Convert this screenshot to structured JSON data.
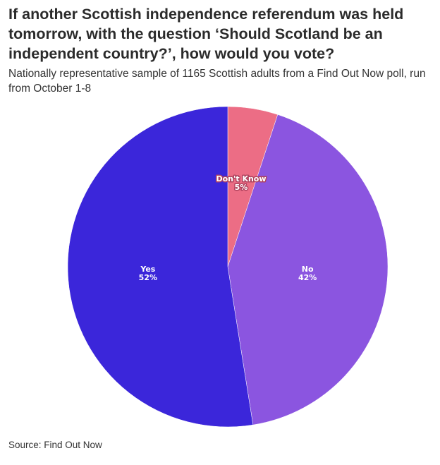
{
  "title": "If another Scottish independence referendum was held tomorrow, with the question ‘Should Scotland be an independent country?’, how would you vote?",
  "subtitle": "Nationally representative sample of 1165 Scottish adults from a Find Out Now poll, run from October 1-8",
  "source": "Source: Find Out Now",
  "chart_data": {
    "type": "pie",
    "title": "If another Scottish independence referendum was held tomorrow, with the question ‘Should Scotland be an independent country?’, how would you vote?",
    "start": "12 o'clock, clockwise",
    "slices": [
      {
        "label": "Don't Know",
        "value": 5,
        "value_label": "5%",
        "color": "#ec6d85"
      },
      {
        "label": "No",
        "value": 42,
        "value_label": "42%",
        "color": "#8b55e0"
      },
      {
        "label": "Yes",
        "value": 52,
        "value_label": "52%",
        "color": "#3b26da"
      }
    ]
  }
}
